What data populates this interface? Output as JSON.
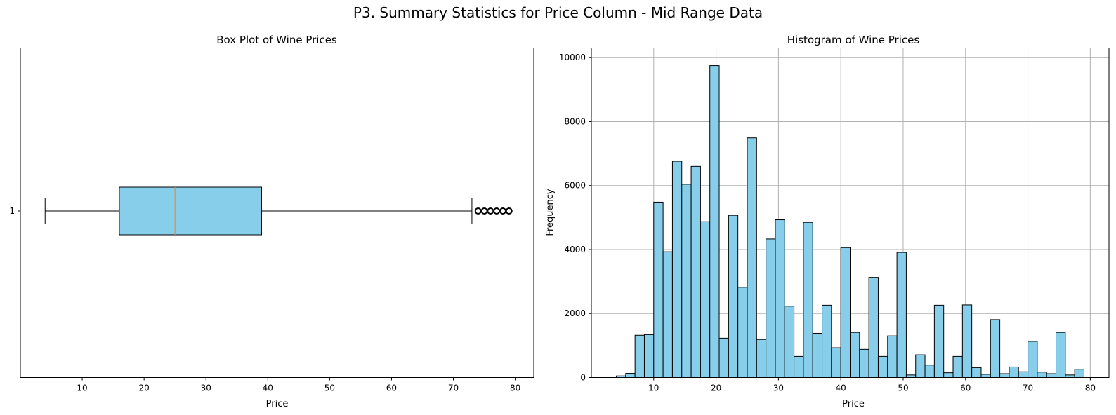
{
  "figure": {
    "suptitle": "P3. Summary Statistics for Price Column - Mid Range Data"
  },
  "chart_data": [
    {
      "type": "box",
      "title": "Box Plot of Wine Prices",
      "xlabel": "Price",
      "ylabel": "",
      "orientation": "horizontal",
      "category_label": "1",
      "whisker_low": 4,
      "q1": 16,
      "median": 25,
      "q3": 39,
      "whisker_high": 73,
      "outliers": [
        74,
        75,
        76,
        77,
        78,
        79
      ],
      "xlim": [
        0,
        83
      ],
      "xticks": [
        10,
        20,
        30,
        40,
        50,
        60,
        70,
        80
      ],
      "grid": false,
      "colors": {
        "box_fill": "#87CEEB",
        "median": "#ff7f0e",
        "edge": "#000000"
      }
    },
    {
      "type": "bar",
      "subtype": "histogram",
      "title": "Histogram of Wine Prices",
      "xlabel": "Price",
      "ylabel": "Frequency",
      "bin_start": 4,
      "bin_width": 1.5,
      "values": [
        50,
        130,
        1320,
        1340,
        5480,
        3930,
        6760,
        6040,
        6600,
        4870,
        9750,
        1230,
        5070,
        2820,
        7490,
        1190,
        4330,
        4930,
        2230,
        660,
        4850,
        1380,
        2260,
        930,
        4060,
        1410,
        880,
        3130,
        660,
        1300,
        3910,
        80,
        710,
        390,
        2260,
        150,
        660,
        2270,
        310,
        100,
        1810,
        120,
        330,
        180,
        1130,
        170,
        120,
        1410,
        80,
        260
      ],
      "xlim": [
        0,
        83
      ],
      "ylim": [
        0,
        10300
      ],
      "xticks": [
        10,
        20,
        30,
        40,
        50,
        60,
        70,
        80
      ],
      "yticks": [
        0,
        2000,
        4000,
        6000,
        8000,
        10000
      ],
      "grid": true,
      "colors": {
        "bar_fill": "#87CEEB",
        "edge": "#000000",
        "grid": "#b0b0b0"
      }
    }
  ]
}
